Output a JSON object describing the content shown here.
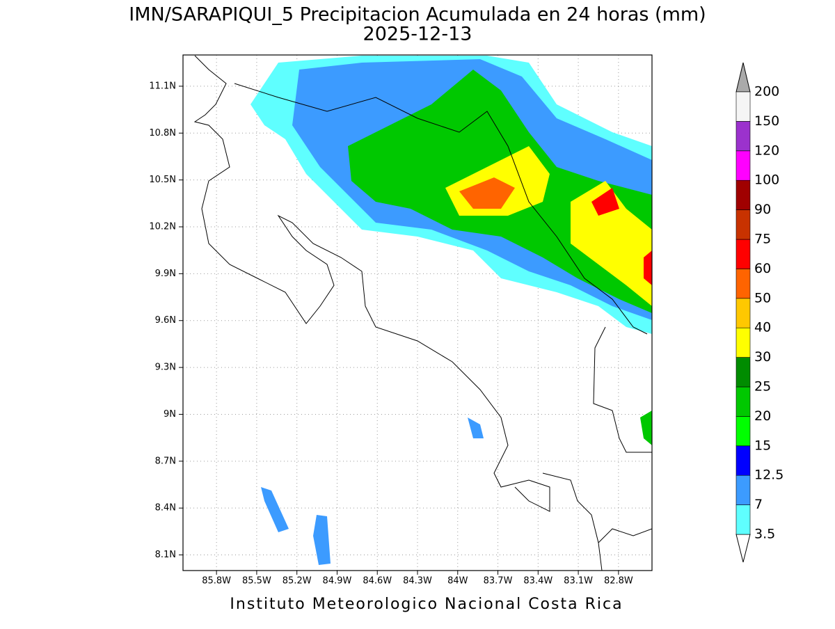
{
  "map": {
    "title": "IMN/SARAPIQUI_5 Precipitacion Acumulada en 24 horas (mm)",
    "subtitle": "2025-12-13",
    "footer": "Instituto Meteorologico Nacional Costa Rica",
    "xlim": [
      -86.05,
      -82.55
    ],
    "ylim": [
      8.0,
      11.3
    ],
    "xticks": [
      {
        "value": -85.8,
        "label": "85.8W"
      },
      {
        "value": -85.5,
        "label": "85.5W"
      },
      {
        "value": -85.2,
        "label": "85.2W"
      },
      {
        "value": -84.9,
        "label": "84.9W"
      },
      {
        "value": -84.6,
        "label": "84.6W"
      },
      {
        "value": -84.3,
        "label": "84.3W"
      },
      {
        "value": -84.0,
        "label": "84W"
      },
      {
        "value": -83.7,
        "label": "83.7W"
      },
      {
        "value": -83.4,
        "label": "83.4W"
      },
      {
        "value": -83.1,
        "label": "83.1W"
      },
      {
        "value": -82.8,
        "label": "82.8W"
      }
    ],
    "yticks": [
      {
        "value": 8.1,
        "label": "8.1N"
      },
      {
        "value": 8.4,
        "label": "8.4N"
      },
      {
        "value": 8.7,
        "label": "8.7N"
      },
      {
        "value": 9.0,
        "label": "9N"
      },
      {
        "value": 9.3,
        "label": "9.3N"
      },
      {
        "value": 9.6,
        "label": "9.6N"
      },
      {
        "value": 9.9,
        "label": "9.9N"
      },
      {
        "value": 10.2,
        "label": "10.2N"
      },
      {
        "value": 10.5,
        "label": "10.5N"
      },
      {
        "value": 10.8,
        "label": "10.8N"
      },
      {
        "value": 11.1,
        "label": "11.1N"
      }
    ],
    "colorbar": {
      "levels": [
        3.5,
        7,
        12.5,
        15,
        20,
        25,
        30,
        40,
        50,
        60,
        75,
        90,
        100,
        120,
        150,
        200
      ],
      "colors": [
        "#5fffff",
        "#3c9bff",
        "#0000ff",
        "#00ff00",
        "#00c800",
        "#008c00",
        "#ffff00",
        "#ffc800",
        "#ff6400",
        "#ff0000",
        "#c83200",
        "#a00000",
        "#ff00ff",
        "#9b32cd",
        "#f5f5f5"
      ],
      "under_color": "#ffffff",
      "over_color": "#aaaaaa"
    }
  }
}
